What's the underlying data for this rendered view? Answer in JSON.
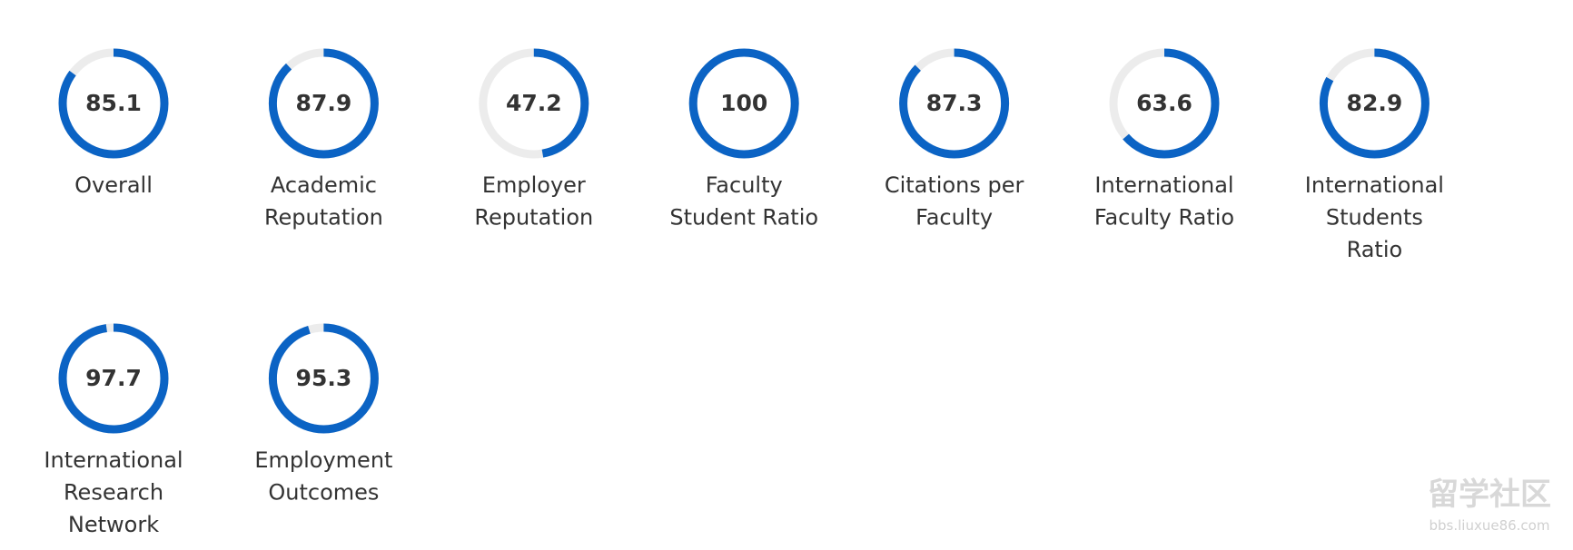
{
  "scores": {
    "range": [
      0,
      100
    ],
    "color": "#0b63c4",
    "track_color": "#ececec",
    "items": [
      {
        "value": "85.1",
        "label_lines": [
          "Overall"
        ]
      },
      {
        "value": "87.9",
        "label_lines": [
          "Academic",
          "Reputation"
        ]
      },
      {
        "value": "47.2",
        "label_lines": [
          "Employer",
          "Reputation"
        ]
      },
      {
        "value": "100",
        "label_lines": [
          "Faculty",
          "Student Ratio"
        ]
      },
      {
        "value": "87.3",
        "label_lines": [
          "Citations per",
          "Faculty"
        ]
      },
      {
        "value": "63.6",
        "label_lines": [
          "International",
          "Faculty Ratio"
        ]
      },
      {
        "value": "82.9",
        "label_lines": [
          "International",
          "Students",
          "Ratio"
        ]
      },
      {
        "value": "97.7",
        "label_lines": [
          "International",
          "Research",
          "Network"
        ]
      },
      {
        "value": "95.3",
        "label_lines": [
          "Employment",
          "Outcomes"
        ]
      }
    ]
  },
  "watermark": {
    "title": "留学社区",
    "url": "bbs.liuxue86.com"
  }
}
